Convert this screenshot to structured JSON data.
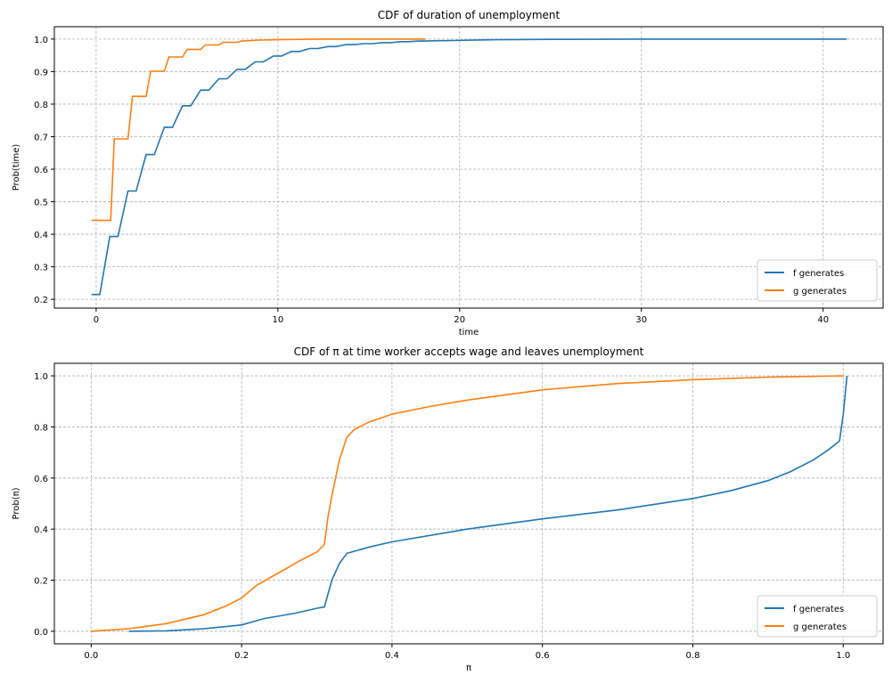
{
  "chart_data": [
    {
      "type": "line",
      "title": "CDF of duration of unemployment",
      "xlabel": "time",
      "ylabel": "Prob(time)",
      "xlim": [
        -2.3,
        43.3
      ],
      "ylim": [
        0.173,
        1.038
      ],
      "xticks": [
        0,
        10,
        20,
        30,
        40
      ],
      "yticks": [
        0.2,
        0.3,
        0.4,
        0.5,
        0.6,
        0.7,
        0.8,
        0.9,
        1.0
      ],
      "grid": true,
      "legend_position": "lower right",
      "series": [
        {
          "name": "f generates",
          "color": "#1f77b4",
          "x": [
            -0.25,
            0.2,
            0.75,
            1.2,
            1.75,
            2.2,
            2.75,
            3.2,
            3.75,
            4.2,
            4.75,
            5.2,
            5.75,
            6.2,
            6.75,
            7.2,
            7.75,
            8.2,
            8.75,
            9.2,
            9.75,
            10.2,
            10.75,
            11.2,
            11.75,
            12.2,
            12.75,
            13.2,
            13.75,
            14.2,
            14.75,
            15.2,
            15.75,
            16.2,
            16.75,
            17.2,
            17.75,
            18.2,
            18.75,
            19.2,
            20,
            22,
            25,
            30,
            35,
            41.3
          ],
          "y": [
            0.215,
            0.215,
            0.393,
            0.393,
            0.533,
            0.533,
            0.645,
            0.645,
            0.729,
            0.729,
            0.795,
            0.795,
            0.843,
            0.843,
            0.878,
            0.878,
            0.907,
            0.907,
            0.93,
            0.93,
            0.948,
            0.948,
            0.962,
            0.962,
            0.971,
            0.971,
            0.977,
            0.977,
            0.983,
            0.983,
            0.986,
            0.986,
            0.989,
            0.989,
            0.992,
            0.992,
            0.994,
            0.994,
            0.995,
            0.995,
            0.996,
            0.998,
            0.999,
            1.0,
            1.0,
            1.0
          ]
        },
        {
          "name": "g generates",
          "color": "#ff7f0e",
          "x": [
            -0.25,
            0.8,
            1.0,
            1.75,
            2.0,
            2.75,
            3.0,
            3.75,
            4.0,
            4.75,
            5.0,
            5.75,
            6.0,
            6.75,
            7.0,
            7.75,
            8.0,
            9,
            10,
            12,
            15,
            18.1
          ],
          "y": [
            0.443,
            0.443,
            0.693,
            0.693,
            0.824,
            0.824,
            0.901,
            0.901,
            0.945,
            0.945,
            0.968,
            0.968,
            0.982,
            0.982,
            0.99,
            0.99,
            0.994,
            0.997,
            0.998,
            1.0,
            1.0,
            1.0
          ]
        }
      ]
    },
    {
      "type": "line",
      "title": "CDF of π at time worker accepts wage and leaves unemployment",
      "xlabel": "π",
      "ylabel": "Prob(π)",
      "xlim": [
        -0.049,
        1.053
      ],
      "ylim": [
        -0.049,
        1.049
      ],
      "xticks": [
        0.0,
        0.2,
        0.4,
        0.6,
        0.8,
        1.0
      ],
      "yticks": [
        0.0,
        0.2,
        0.4,
        0.6,
        0.8,
        1.0
      ],
      "grid": true,
      "legend_position": "lower right",
      "series": [
        {
          "name": "f generates",
          "color": "#1f77b4",
          "x": [
            0.05,
            0.1,
            0.15,
            0.2,
            0.23,
            0.27,
            0.3,
            0.31,
            0.32,
            0.33,
            0.34,
            0.37,
            0.4,
            0.5,
            0.6,
            0.7,
            0.8,
            0.85,
            0.9,
            0.93,
            0.96,
            0.98,
            0.995,
            1.0,
            1.005
          ],
          "y": [
            0,
            0.002,
            0.01,
            0.025,
            0.05,
            0.07,
            0.09,
            0.095,
            0.2,
            0.265,
            0.305,
            0.33,
            0.35,
            0.4,
            0.44,
            0.475,
            0.52,
            0.55,
            0.59,
            0.625,
            0.67,
            0.71,
            0.745,
            0.85,
            1.0
          ]
        },
        {
          "name": "g generates",
          "color": "#ff7f0e",
          "x": [
            0,
            0.05,
            0.1,
            0.15,
            0.18,
            0.2,
            0.22,
            0.25,
            0.28,
            0.3,
            0.31,
            0.315,
            0.32,
            0.33,
            0.34,
            0.35,
            0.37,
            0.4,
            0.45,
            0.5,
            0.6,
            0.7,
            0.8,
            0.9,
            1.0
          ],
          "y": [
            0,
            0.01,
            0.03,
            0.065,
            0.1,
            0.13,
            0.18,
            0.23,
            0.28,
            0.31,
            0.34,
            0.45,
            0.53,
            0.67,
            0.76,
            0.79,
            0.82,
            0.85,
            0.88,
            0.905,
            0.945,
            0.97,
            0.985,
            0.995,
            1.0
          ]
        }
      ]
    }
  ]
}
